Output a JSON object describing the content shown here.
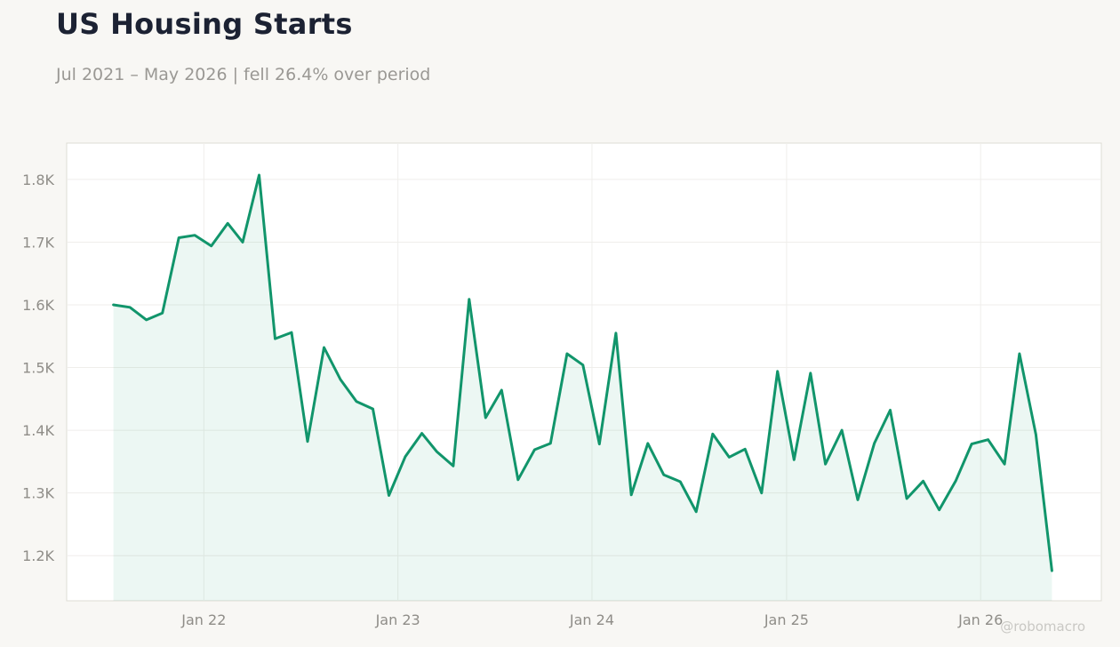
{
  "header": {
    "title": "US Housing Starts",
    "subtitle": "Jul 2021 – May 2026 | fell 26.4% over period"
  },
  "watermark": "@robomacro",
  "colors": {
    "line": "#11956b",
    "fill": "#11956b",
    "plot_background": "#ffffff",
    "page_background": "#f8f7f4",
    "grid": "#efeeeb",
    "plot_border": "#dedcd4"
  },
  "chart_data": {
    "type": "area",
    "title": "US Housing Starts",
    "subtitle": "Jul 2021 – May 2026 | fell 26.4% over period",
    "xlabel": "",
    "ylabel": "",
    "grid": true,
    "legend": "none",
    "x_range": [
      "2021-04-18",
      "2026-08-16"
    ],
    "ylim": [
      1128,
      1858
    ],
    "x_ticks": [
      {
        "date": "2022-01-01",
        "label": "Jan 22"
      },
      {
        "date": "2023-01-01",
        "label": "Jan 23"
      },
      {
        "date": "2024-01-01",
        "label": "Jan 24"
      },
      {
        "date": "2025-01-01",
        "label": "Jan 25"
      },
      {
        "date": "2026-01-01",
        "label": "Jan 26"
      }
    ],
    "y_ticks": [
      {
        "value": 1200,
        "label": "1.2K"
      },
      {
        "value": 1300,
        "label": "1.3K"
      },
      {
        "value": 1400,
        "label": "1.4K"
      },
      {
        "value": 1500,
        "label": "1.5K"
      },
      {
        "value": 1600,
        "label": "1.6K"
      },
      {
        "value": 1700,
        "label": "1.7K"
      },
      {
        "value": 1800,
        "label": "1.8K"
      }
    ],
    "series": [
      {
        "x": [
          "2021-07",
          "2021-08",
          "2021-09",
          "2021-10",
          "2021-11",
          "2021-12",
          "2022-01",
          "2022-02",
          "2022-03",
          "2022-04",
          "2022-05",
          "2022-06",
          "2022-07",
          "2022-08",
          "2022-09",
          "2022-10",
          "2022-11",
          "2022-12",
          "2023-01",
          "2023-02",
          "2023-03",
          "2023-04",
          "2023-05",
          "2023-06",
          "2023-07",
          "2023-08",
          "2023-09",
          "2023-10",
          "2023-11",
          "2023-12",
          "2024-01",
          "2024-02",
          "2024-03",
          "2024-04",
          "2024-05",
          "2024-06",
          "2024-07",
          "2024-08",
          "2024-09",
          "2024-10",
          "2024-11",
          "2024-12",
          "2025-01",
          "2025-02",
          "2025-03",
          "2025-04",
          "2025-05",
          "2025-06",
          "2025-07",
          "2025-08",
          "2025-09",
          "2025-10",
          "2025-11",
          "2025-12",
          "2026-01",
          "2026-02",
          "2026-03",
          "2026-04",
          "2026-05"
        ],
        "values": [
          1600,
          1596,
          1576,
          1587,
          1707,
          1711,
          1694,
          1730,
          1700,
          1807,
          1546,
          1556,
          1382,
          1532,
          1481,
          1446,
          1434,
          1296,
          1358,
          1395,
          1366,
          1343,
          1609,
          1420,
          1464,
          1321,
          1369,
          1379,
          1522,
          1504,
          1378,
          1555,
          1297,
          1379,
          1329,
          1318,
          1270,
          1394,
          1357,
          1370,
          1300,
          1494,
          1353,
          1491,
          1346,
          1400,
          1289,
          1379,
          1432,
          1291,
          1319,
          1273,
          1319,
          1378,
          1385,
          1346,
          1522,
          1393,
          1176
        ]
      }
    ]
  }
}
